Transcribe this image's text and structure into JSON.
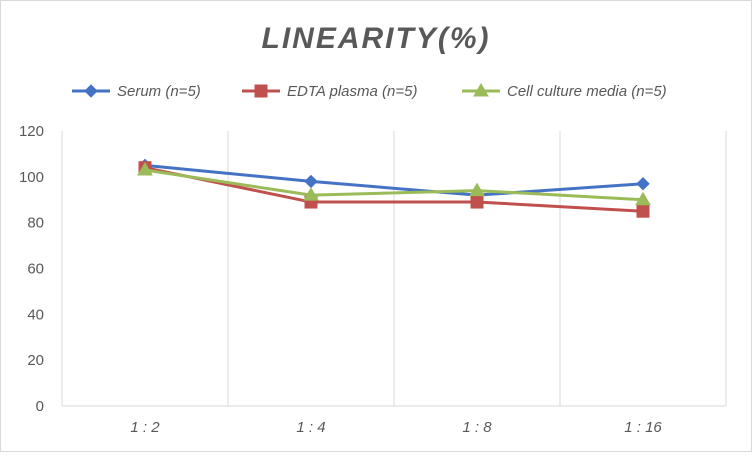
{
  "chart_data": {
    "type": "line",
    "title": "LINEARITY(%)",
    "xlabel": "",
    "ylabel": "",
    "categories": [
      "1:2",
      "1:4",
      "1:8",
      "1:16"
    ],
    "ylim": [
      0,
      120
    ],
    "yticks": [
      0,
      20,
      40,
      60,
      80,
      100,
      120
    ],
    "grid": "vertical",
    "legend": "top",
    "series": [
      {
        "name": "Serum (n=5)",
        "values": [
          105,
          98,
          92,
          97
        ],
        "color": "#4472C4",
        "marker": "diamond"
      },
      {
        "name": "EDTA plasma (n=5)",
        "values": [
          104,
          89,
          89,
          85
        ],
        "color": "#C0504D",
        "marker": "square"
      },
      {
        "name": "Cell culture media (n=5)",
        "values": [
          103,
          92,
          94,
          90
        ],
        "color": "#9BBB59",
        "marker": "triangle"
      }
    ]
  }
}
